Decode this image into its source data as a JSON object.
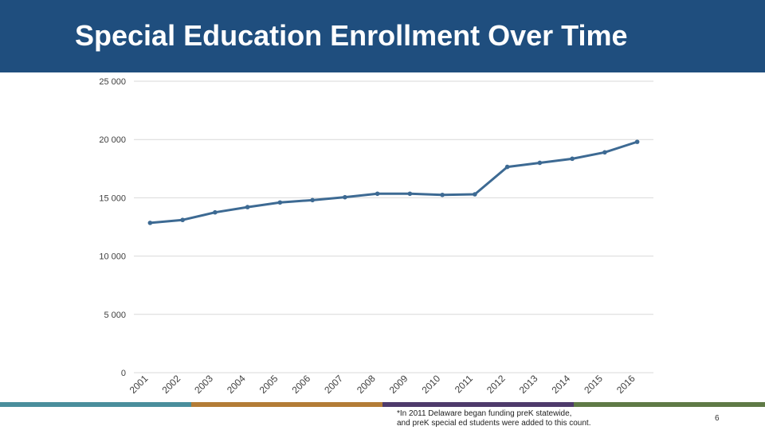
{
  "slide": {
    "title": "Special Education Enrollment Over Time",
    "footnote_line1": "*In 2011 Delaware began funding preK statewide,",
    "footnote_line2": "and preK special ed students were added to this count.",
    "page_number": "6",
    "stripe_colors": [
      "#4a8e9c",
      "#b37c36",
      "#4e3a6b",
      "#5f7a46"
    ]
  },
  "chart_data": {
    "type": "line",
    "title": "Special Education Enrollment Over Time",
    "xlabel": "",
    "ylabel": "",
    "categories": [
      "2001",
      "2002",
      "2003",
      "2004",
      "2005",
      "2006",
      "2007",
      "2008",
      "2009",
      "2010",
      "2011",
      "2012",
      "2013",
      "2014",
      "2015",
      "2016"
    ],
    "series": [
      {
        "values": [
          12850,
          13100,
          13750,
          14200,
          14600,
          14800,
          15050,
          15350,
          15350,
          15250,
          15300,
          17650,
          18000,
          18350,
          18900,
          19800
        ],
        "color": "#3d6a93"
      }
    ],
    "ylim": [
      0,
      25000
    ],
    "yticks": [
      0,
      5000,
      10000,
      15000,
      20000,
      25000
    ],
    "ytick_labels": [
      "0",
      "5 000",
      "10 000",
      "15 000",
      "20 000",
      "25 000"
    ],
    "grid": true,
    "legend": "none"
  }
}
